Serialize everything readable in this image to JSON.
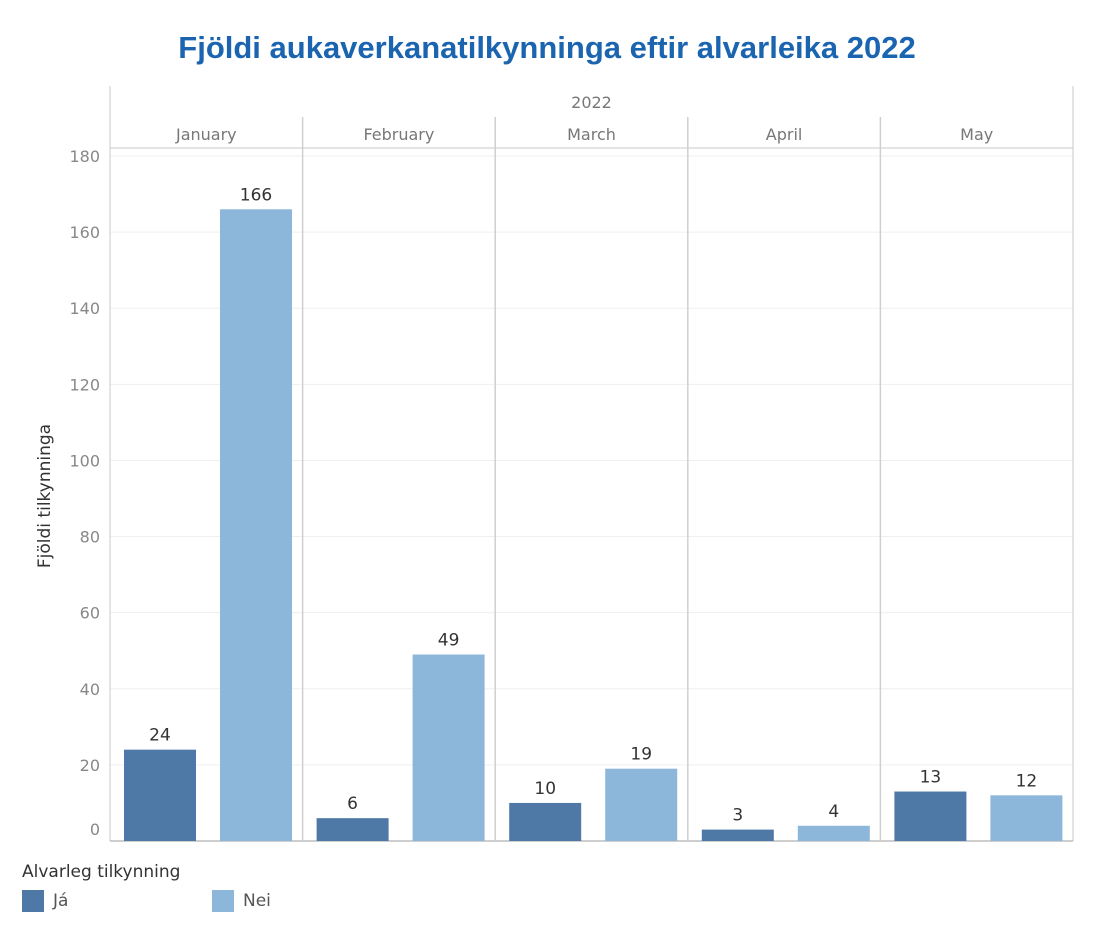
{
  "chart_data": {
    "type": "bar",
    "title": "Fjöldi aukaverkanatilkynninga eftir alvarleika 2022",
    "year_header": "2022",
    "ylabel": "Fjöldi tilkynninga",
    "xlabel": "",
    "ylim": [
      0,
      180
    ],
    "yticks": [
      0,
      20,
      40,
      60,
      80,
      100,
      120,
      140,
      160,
      180
    ],
    "categories": [
      "January",
      "February",
      "March",
      "April",
      "May"
    ],
    "series": [
      {
        "name": "Já",
        "color": "#4e79a7",
        "values": [
          24,
          6,
          10,
          3,
          13
        ]
      },
      {
        "name": "Nei",
        "color": "#8cb7db",
        "values": [
          166,
          49,
          19,
          4,
          12
        ]
      }
    ],
    "legend_title": "Alvarleg tilkynning",
    "legend_position": "bottom-left",
    "grid": true
  }
}
